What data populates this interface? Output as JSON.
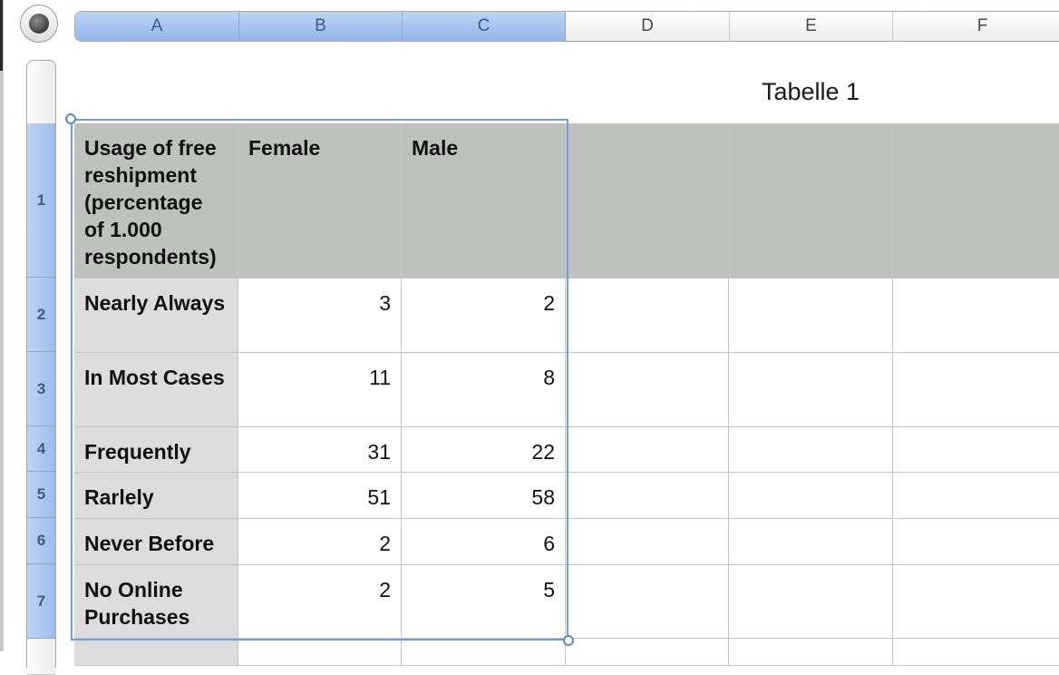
{
  "columns": [
    "A",
    "B",
    "C",
    "D",
    "E",
    "F"
  ],
  "rows": [
    "1",
    "2",
    "3",
    "4",
    "5",
    "6",
    "7"
  ],
  "table_title": "Tabelle 1",
  "table": {
    "header": [
      "Usage of free reshipment (percentage of 1.000 respondents)",
      "Female",
      "Male"
    ],
    "body": [
      [
        "Nearly Always",
        "3",
        "2"
      ],
      [
        "In Most Cases",
        "11",
        "8"
      ],
      [
        "Frequently",
        "31",
        "22"
      ],
      [
        "Rarlely",
        "51",
        "58"
      ],
      [
        "Never Before",
        "2",
        "6"
      ],
      [
        "No Online Purchases",
        "2",
        "5"
      ]
    ]
  },
  "colors": {
    "selection": "#6f9ee0",
    "header_fill": "#bfc1bf",
    "label_fill": "#dcdcdc"
  }
}
